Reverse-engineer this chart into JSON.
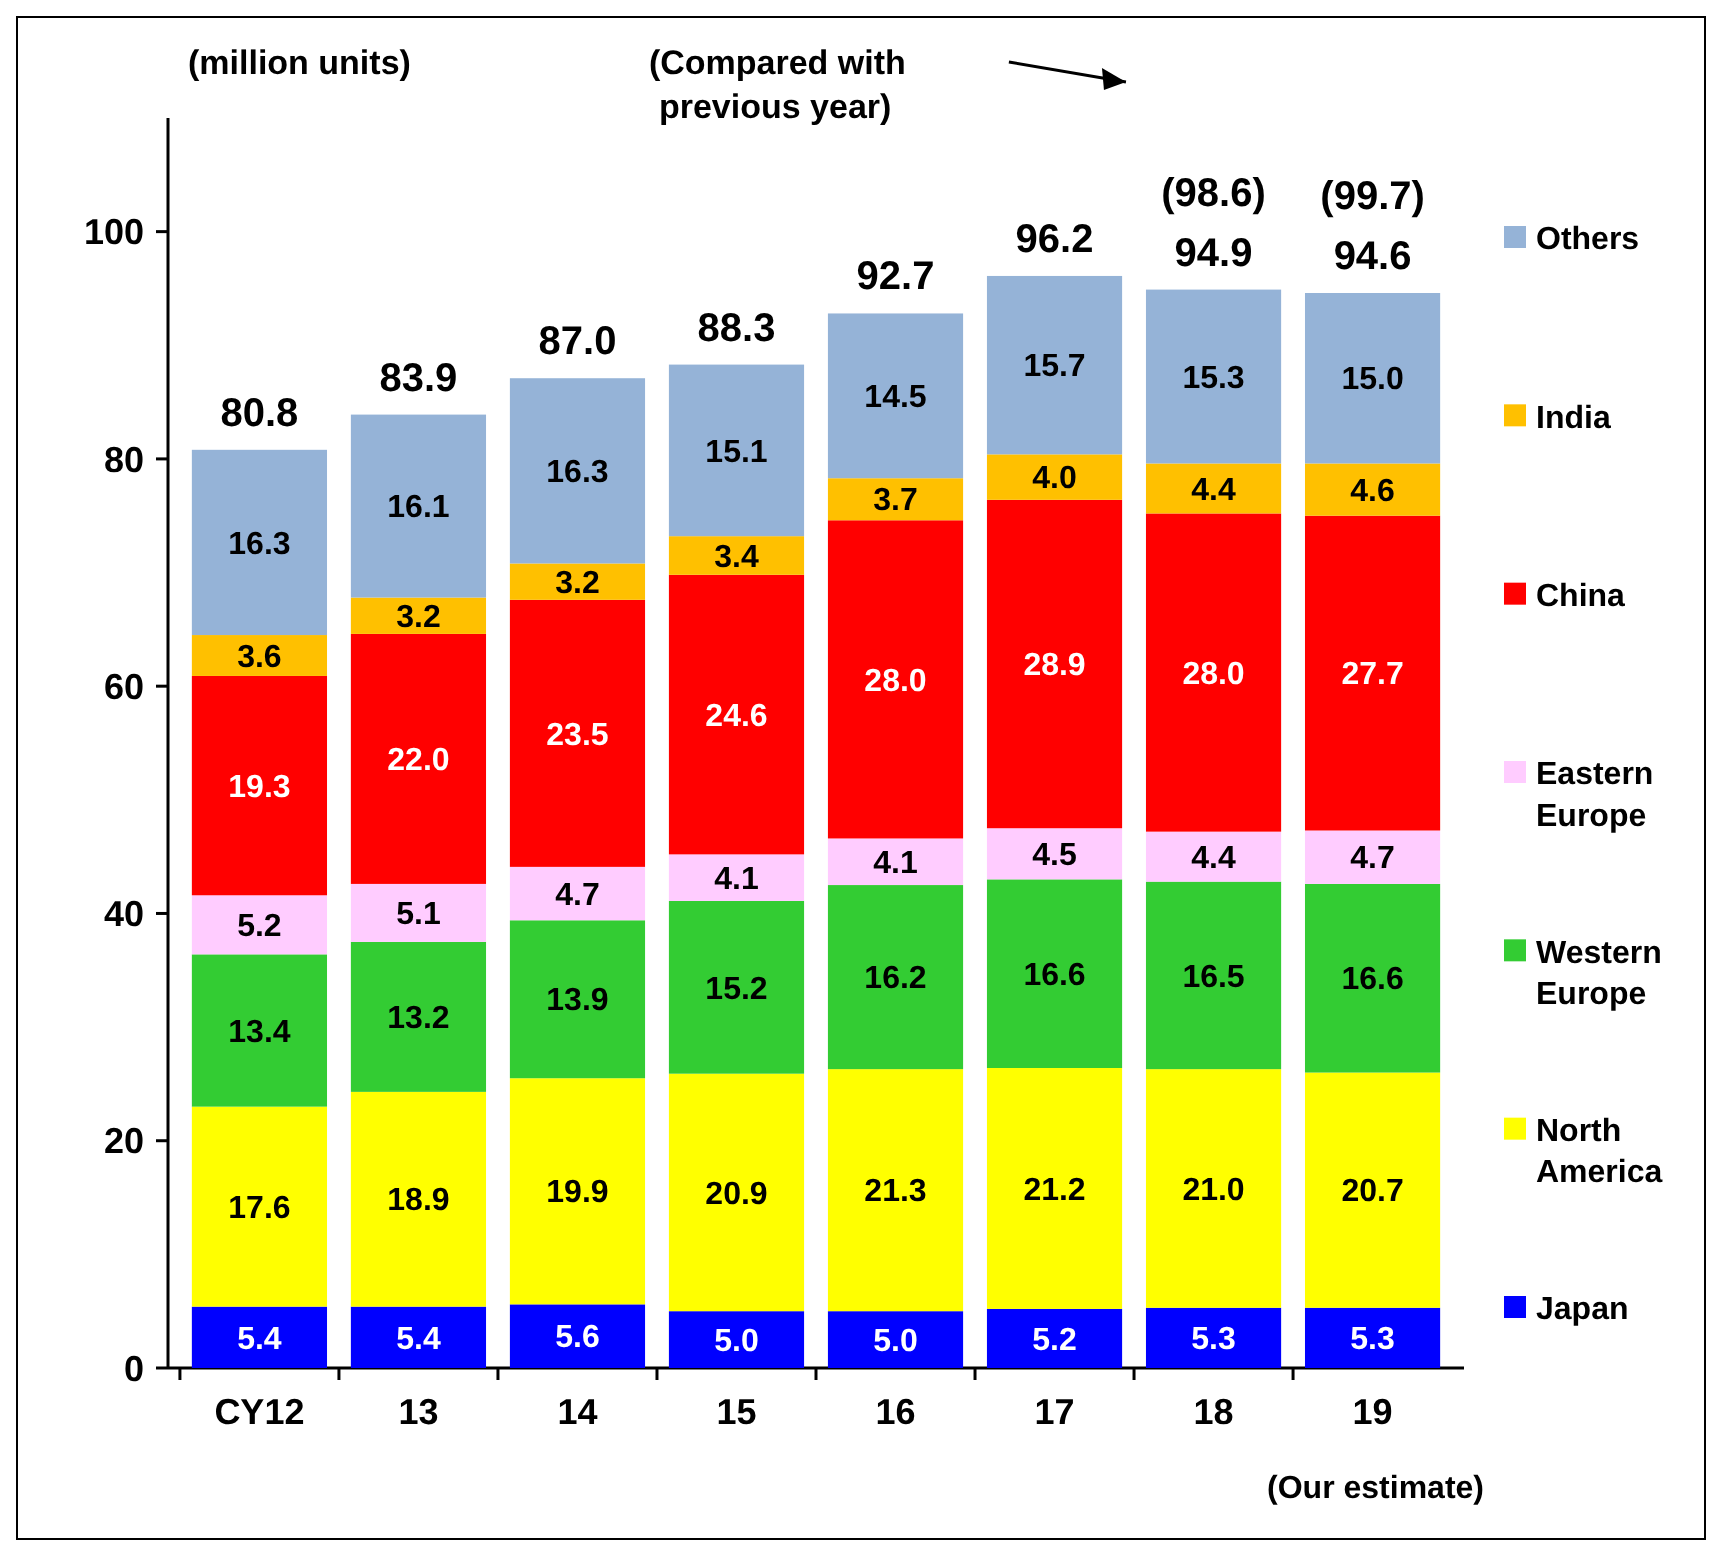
{
  "chart_data": {
    "type": "bar",
    "stacked": true,
    "ylabel": "(million units)",
    "categories": [
      "CY12",
      "13",
      "14",
      "15",
      "16",
      "17",
      "18",
      "19"
    ],
    "series": [
      {
        "name": "Japan",
        "color": "#0000ff",
        "values": [
          5.4,
          5.4,
          5.6,
          5.0,
          5.0,
          5.2,
          5.3,
          5.3
        ],
        "value_labels": [
          "5.4",
          "5.4",
          "5.6",
          "5.0",
          "5.0",
          "5.2",
          "5.3",
          "5.3"
        ]
      },
      {
        "name": "North America",
        "color": "#ffff00",
        "values": [
          17.6,
          18.9,
          19.9,
          20.9,
          21.3,
          21.2,
          21.0,
          20.7
        ],
        "value_labels": [
          "17.6",
          "18.9",
          "19.9",
          "20.9",
          "21.3",
          "21.2",
          "21.0",
          "20.7"
        ]
      },
      {
        "name": "Western Europe",
        "color": "#33cc33",
        "values": [
          13.4,
          13.2,
          13.9,
          15.2,
          16.2,
          16.6,
          16.5,
          16.6
        ],
        "value_labels": [
          "13.4",
          "13.2",
          "13.9",
          "15.2",
          "16.2",
          "16.6",
          "16.5",
          "16.6"
        ]
      },
      {
        "name": "Eastern Europe",
        "color": "#ffccff",
        "values": [
          5.2,
          5.1,
          4.7,
          4.1,
          4.1,
          4.5,
          4.4,
          4.7
        ],
        "value_labels": [
          "5.2",
          "5.1",
          "4.7",
          "4.1",
          "4.1",
          "4.5",
          "4.4",
          "4.7"
        ]
      },
      {
        "name": "China",
        "color": "#ff0000",
        "values": [
          19.3,
          22.0,
          23.5,
          24.6,
          28.0,
          28.9,
          28.0,
          27.7
        ],
        "value_labels": [
          "19.3",
          "22.0",
          "23.5",
          "24.6",
          "28.0",
          "28.9",
          "28.0",
          "27.7"
        ]
      },
      {
        "name": "India",
        "color": "#ffc000",
        "values": [
          3.6,
          3.2,
          3.2,
          3.4,
          3.7,
          4.0,
          4.4,
          4.6
        ],
        "value_labels": [
          "3.6",
          "3.2",
          "3.2",
          "3.4",
          "3.7",
          "4.0",
          "4.4",
          "4.6"
        ]
      },
      {
        "name": "Others",
        "color": "#95b3d7",
        "values": [
          16.3,
          16.1,
          16.3,
          15.1,
          14.5,
          15.7,
          15.3,
          15.0
        ],
        "value_labels": [
          "16.3",
          "16.1",
          "16.3",
          "15.1",
          "14.5",
          "15.7",
          "15.3",
          "15.0"
        ]
      }
    ],
    "totals": [
      "80.8",
      "83.9",
      "87.0",
      "88.3",
      "92.7",
      "96.2",
      "94.9",
      "94.6"
    ],
    "ylim": [
      0,
      110
    ],
    "yticks": [
      0,
      20,
      40,
      60,
      80,
      100
    ],
    "grid": false,
    "legend": "right",
    "annotations": [
      "(Compared with previous year)",
      {
        "text": "(98.6)",
        "x": "18",
        "y": 94.9
      },
      {
        "text": "(99.7)",
        "x": "19",
        "y": 94.6
      },
      "(Our estimate)"
    ]
  }
}
